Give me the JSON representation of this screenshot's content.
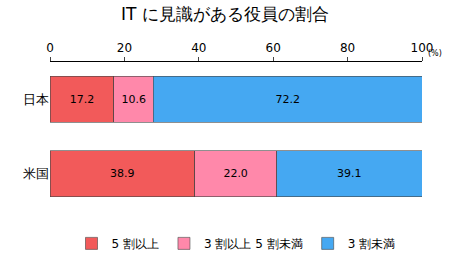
{
  "chart_data": {
    "type": "bar",
    "title": "IT に見識がある役員の割合",
    "orientation": "horizontal",
    "stacked": true,
    "data_labels": true,
    "categories": [
      "日本",
      "米国"
    ],
    "series": [
      {
        "name": "5 割以上",
        "color": "#f25a5a",
        "values": [
          17.2,
          38.9
        ],
        "value_labels": [
          "17.2",
          "38.9"
        ]
      },
      {
        "name": "3 割以上 5 割未満",
        "color": "#ff88aa",
        "values": [
          10.6,
          22.0
        ],
        "value_labels": [
          "10.6",
          "22.0"
        ]
      },
      {
        "name": "3 割未満",
        "color": "#45a8f2",
        "values": [
          72.2,
          39.1
        ],
        "value_labels": [
          "72.2",
          "39.1"
        ]
      }
    ],
    "xlabel": "(%)",
    "xlim": [
      0,
      100
    ],
    "xticks": [
      0,
      20,
      40,
      60,
      80,
      100
    ],
    "grid": false,
    "legend": "bottom"
  }
}
